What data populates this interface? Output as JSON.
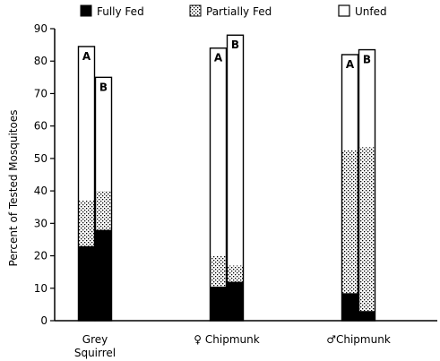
{
  "chart_data": {
    "type": "bar",
    "stacked": true,
    "title": "",
    "xlabel": "",
    "ylabel": "Percent of Tested Mosquitoes",
    "ylim": [
      0,
      90
    ],
    "yticks": [
      0,
      10,
      20,
      30,
      40,
      50,
      60,
      70,
      80,
      90
    ],
    "legend_position": "top",
    "categories": [
      "Grey Squirrel",
      "♀ Chipmunk",
      "♂Chipmunk"
    ],
    "category_lines": [
      [
        "Grey",
        "Squirrel"
      ],
      [
        "♀ Chipmunk"
      ],
      [
        "♂Chipmunk"
      ]
    ],
    "bar_labels": [
      "A",
      "B"
    ],
    "legend": [
      {
        "name": "Fully Fed",
        "pattern": "solid"
      },
      {
        "name": "Partially Fed",
        "pattern": "dotted"
      },
      {
        "name": "Unfed",
        "pattern": "empty"
      }
    ],
    "series": [
      {
        "name": "Fully Fed",
        "values": [
          [
            23,
            28
          ],
          [
            10.5,
            12
          ],
          [
            8.5,
            3
          ]
        ]
      },
      {
        "name": "Partially Fed",
        "values": [
          [
            14,
            12
          ],
          [
            9.5,
            5
          ],
          [
            44,
            50.5
          ]
        ]
      },
      {
        "name": "Unfed",
        "values": [
          [
            47.5,
            35
          ],
          [
            64,
            71
          ],
          [
            29.5,
            30
          ]
        ]
      }
    ],
    "totals": [
      [
        84.5,
        75
      ],
      [
        84,
        88
      ],
      [
        82,
        83.5
      ]
    ]
  }
}
